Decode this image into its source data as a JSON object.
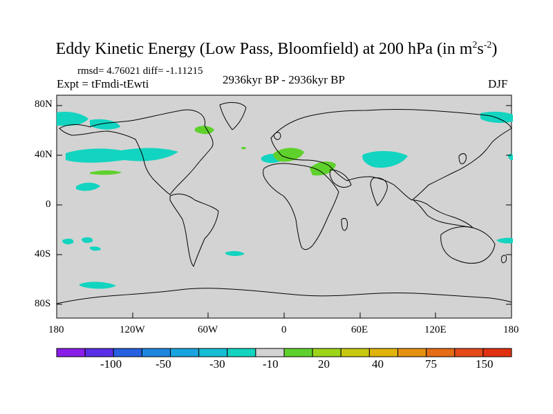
{
  "title": {
    "main": "Eddy Kinetic Energy (Low Pass, Bloomfield) at 200 hPa (in m",
    "sup1": "2",
    "mid": "s",
    "sup2": "-2",
    "end": ")"
  },
  "stats_line": "rmsd= 4.76021 diff= -1.11215",
  "experiment": "Expt = tFmdi-tEwti",
  "period": "2936kyr BP - 2936kyr BP",
  "season": "DJF",
  "lat_labels": [
    "80N",
    "40N",
    "0",
    "40S",
    "80S"
  ],
  "lon_labels": [
    "180",
    "120W",
    "60W",
    "0",
    "60E",
    "120E",
    "180"
  ],
  "colorbar": {
    "colors": [
      "#8a1ee8",
      "#5a2ee6",
      "#2660e0",
      "#1d86df",
      "#18a4de",
      "#15bed5",
      "#12d4c0",
      "#d3d3d3",
      "#5fd12c",
      "#9cd419",
      "#c8c811",
      "#e0b30a",
      "#e69211",
      "#e46d16",
      "#e44a18",
      "#e0300f"
    ],
    "labels": [
      "-100",
      "-50",
      "-30",
      "-10",
      "20",
      "40",
      "75",
      "150"
    ]
  },
  "colors": {
    "ocean_land_fill": "#d3d3d3",
    "positive_anomaly": "#5fd12c",
    "negative_anomaly": "#12d4c0",
    "coastline": "#000000"
  }
}
